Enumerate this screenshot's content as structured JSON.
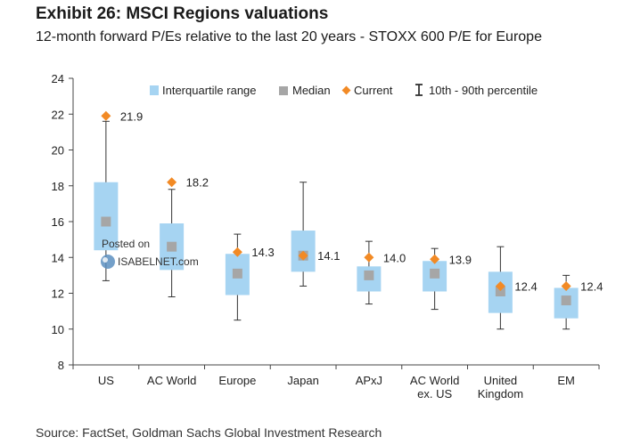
{
  "header": {
    "title": "Exhibit 26: MSCI Regions valuations",
    "subtitle": "12-month forward P/Es relative to the last 20 years - STOXX 600 P/E for Europe"
  },
  "footer": {
    "source": "Source: FactSet, Goldman Sachs Global Investment Research"
  },
  "watermark": {
    "line1": "Posted on",
    "line2": "ISABELNET.com"
  },
  "legend": {
    "iqr": "Interquartile range",
    "median": "Median",
    "current": "Current",
    "range": "10th - 90th percentile"
  },
  "colors": {
    "iqr": "#a6d4f2",
    "median": "#a6a6a6",
    "current": "#f28a25",
    "whisker": "#333333"
  },
  "chart_data": {
    "type": "box",
    "title": "Exhibit 26: MSCI Regions valuations",
    "subtitle": "12-month forward P/Es relative to the last 20 years - STOXX 600 P/E for Europe",
    "ylim": [
      8,
      24
    ],
    "yticks": [
      "8",
      "10",
      "12",
      "14",
      "16",
      "18",
      "20",
      "22",
      "24"
    ],
    "grid": false,
    "legend_position": "top",
    "categories": [
      {
        "lines": [
          "US"
        ],
        "p10": 12.7,
        "p25": 14.4,
        "median": 16.0,
        "p75": 18.2,
        "p90": 21.6,
        "current": 21.9,
        "current_label": "21.9"
      },
      {
        "lines": [
          "AC World"
        ],
        "p10": 11.8,
        "p25": 13.3,
        "median": 14.6,
        "p75": 15.9,
        "p90": 17.8,
        "current": 18.2,
        "current_label": "18.2"
      },
      {
        "lines": [
          "Europe"
        ],
        "p10": 10.5,
        "p25": 11.9,
        "median": 13.1,
        "p75": 14.2,
        "p90": 15.3,
        "current": 14.3,
        "current_label": "14.3"
      },
      {
        "lines": [
          "Japan"
        ],
        "p10": 12.4,
        "p25": 13.2,
        "median": 14.1,
        "p75": 15.5,
        "p90": 18.2,
        "current": 14.1,
        "current_label": "14.1"
      },
      {
        "lines": [
          "APxJ"
        ],
        "p10": 11.4,
        "p25": 12.1,
        "median": 13.0,
        "p75": 13.5,
        "p90": 14.9,
        "current": 14.0,
        "current_label": "14.0"
      },
      {
        "lines": [
          "AC World",
          "ex. US"
        ],
        "p10": 11.1,
        "p25": 12.1,
        "median": 13.1,
        "p75": 13.8,
        "p90": 14.5,
        "current": 13.9,
        "current_label": "13.9"
      },
      {
        "lines": [
          "United",
          "Kingdom"
        ],
        "p10": 10.0,
        "p25": 10.9,
        "median": 12.1,
        "p75": 13.2,
        "p90": 14.6,
        "current": 12.4,
        "current_label": "12.4"
      },
      {
        "lines": [
          "EM"
        ],
        "p10": 10.0,
        "p25": 10.6,
        "median": 11.6,
        "p75": 12.3,
        "p90": 13.0,
        "current": 12.4,
        "current_label": "12.4"
      }
    ]
  }
}
